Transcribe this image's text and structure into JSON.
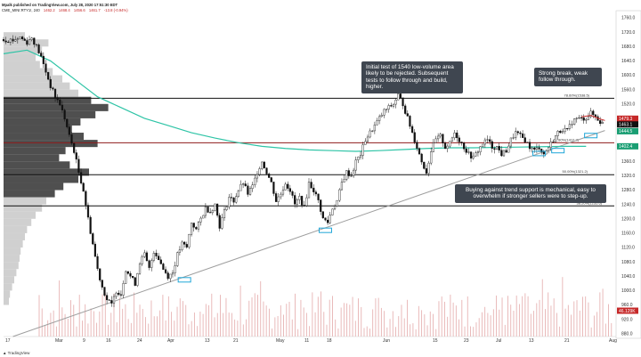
{
  "header": {
    "title": "Mpalk published on TradingView.com, July 28, 2020 17:51:30 EDT",
    "symbol": "CME_MINI:RTY1!, 240",
    "ohlc": [
      "1462.2",
      "1468.4",
      "1456.6",
      "1461.7"
    ],
    "change": "-13.8 (-0.94%)"
  },
  "footer": {
    "logo_text": "TradingView"
  },
  "annotations": {
    "callout_1540": "Initial test of 1540 low-volume area likely to be rejected. Subsequent tests to follow through and build, higher.",
    "callout_break": "Strong break, weak follow through.",
    "callout_support": "Buying against trend support is mechanical, easy to overwhelm if stronger sellers were to step-up."
  },
  "colors": {
    "candle": "#111111",
    "hline": "#111111",
    "red_hline": "#8e1b1b",
    "trendline": "#9e9e9e",
    "ema": "#2ec4a6",
    "profile_dark": "#303030",
    "profile_light": "#c8c8c8",
    "volume": "#e7b3b3",
    "highlight": "#1fa6d8",
    "callout_bg": "#3f4650",
    "price_green": "#1a9e73",
    "price_red": "#c62828"
  },
  "chart_data": {
    "type": "candlestick",
    "title": "",
    "symbol": "CME_MINI:RTY1!",
    "timeframe": "240",
    "x_ticks": [
      "17",
      "Mar",
      "9",
      "16",
      "24",
      "Apr",
      "13",
      "21",
      "May",
      "11",
      "18",
      "Jun",
      "15",
      "23",
      "Jul",
      "13",
      "21",
      "Aug"
    ],
    "y_ticks": [
      "1760.0",
      "1720.0",
      "1680.0",
      "1640.0",
      "1600.0",
      "1560.0",
      "1520.0",
      "1480.0",
      "1440.0",
      "1400.0",
      "1360.0",
      "1320.0",
      "1280.0",
      "1240.0",
      "1200.0",
      "1160.0",
      "1120.0",
      "1080.0",
      "1040.0",
      "1000.0",
      "960.0",
      "920.0",
      "880.0"
    ],
    "ylim": [
      872,
      1775
    ],
    "levels": [
      {
        "price": 1536,
        "label": "78.60%(1538.5)",
        "color": "hline"
      },
      {
        "price": 1412,
        "label": "61.80%(1412.2)",
        "color": "red_hline"
      },
      {
        "price": 1323,
        "label": "50.00%(1321.2)",
        "color": "hline"
      },
      {
        "price": 1236,
        "label": "38.20%(1235.6)",
        "color": "hline"
      }
    ],
    "price_labels": [
      {
        "value": "1479.3",
        "color": "price_red"
      },
      {
        "value": "1463.1",
        "color": "candle"
      },
      {
        "value": "1444.5",
        "color": "price_green"
      },
      {
        "value": "1402.4",
        "color": "price_green"
      },
      {
        "value": "46.129K",
        "color": "price_red"
      }
    ],
    "close_path": [
      [
        0,
        1700
      ],
      [
        4,
        1698
      ],
      [
        7,
        1706
      ],
      [
        10,
        1692
      ],
      [
        12,
        1705
      ],
      [
        14,
        1680
      ],
      [
        16,
        1650
      ],
      [
        18,
        1610
      ],
      [
        20,
        1570
      ],
      [
        22,
        1540
      ],
      [
        24,
        1520
      ],
      [
        26,
        1480
      ],
      [
        28,
        1430
      ],
      [
        30,
        1390
      ],
      [
        32,
        1330
      ],
      [
        34,
        1280
      ],
      [
        36,
        1200
      ],
      [
        38,
        1130
      ],
      [
        40,
        1060
      ],
      [
        42,
        1010
      ],
      [
        44,
        975
      ],
      [
        46,
        960
      ],
      [
        48,
        1000
      ],
      [
        50,
        990
      ],
      [
        52,
        1060
      ],
      [
        54,
        1040
      ],
      [
        56,
        1020
      ],
      [
        58,
        1080
      ],
      [
        60,
        1100
      ],
      [
        62,
        1060
      ],
      [
        64,
        1110
      ],
      [
        66,
        1090
      ],
      [
        68,
        1060
      ],
      [
        70,
        1040
      ],
      [
        72,
        1050
      ],
      [
        74,
        1100
      ],
      [
        76,
        1130
      ],
      [
        78,
        1120
      ],
      [
        80,
        1190
      ],
      [
        82,
        1170
      ],
      [
        84,
        1200
      ],
      [
        86,
        1230
      ],
      [
        88,
        1220
      ],
      [
        90,
        1240
      ],
      [
        92,
        1180
      ],
      [
        94,
        1220
      ],
      [
        96,
        1260
      ],
      [
        98,
        1250
      ],
      [
        100,
        1280
      ],
      [
        102,
        1300
      ],
      [
        104,
        1270
      ],
      [
        106,
        1290
      ],
      [
        108,
        1330
      ],
      [
        110,
        1360
      ],
      [
        112,
        1330
      ],
      [
        114,
        1300
      ],
      [
        116,
        1250
      ],
      [
        118,
        1270
      ],
      [
        120,
        1300
      ],
      [
        122,
        1280
      ],
      [
        124,
        1240
      ],
      [
        126,
        1260
      ],
      [
        128,
        1230
      ],
      [
        130,
        1300
      ],
      [
        132,
        1280
      ],
      [
        134,
        1250
      ],
      [
        136,
        1200
      ],
      [
        138,
        1190
      ],
      [
        140,
        1230
      ],
      [
        142,
        1250
      ],
      [
        144,
        1300
      ],
      [
        146,
        1330
      ],
      [
        148,
        1320
      ],
      [
        150,
        1360
      ],
      [
        152,
        1380
      ],
      [
        154,
        1420
      ],
      [
        156,
        1440
      ],
      [
        158,
        1460
      ],
      [
        160,
        1480
      ],
      [
        162,
        1500
      ],
      [
        164,
        1510
      ],
      [
        166,
        1520
      ],
      [
        168,
        1545
      ],
      [
        170,
        1520
      ],
      [
        172,
        1480
      ],
      [
        174,
        1440
      ],
      [
        176,
        1400
      ],
      [
        178,
        1360
      ],
      [
        180,
        1330
      ],
      [
        182,
        1390
      ],
      [
        184,
        1420
      ],
      [
        186,
        1430
      ],
      [
        188,
        1400
      ],
      [
        190,
        1410
      ],
      [
        192,
        1440
      ],
      [
        194,
        1420
      ],
      [
        196,
        1400
      ],
      [
        198,
        1380
      ],
      [
        200,
        1370
      ],
      [
        202,
        1390
      ],
      [
        204,
        1410
      ],
      [
        206,
        1420
      ],
      [
        208,
        1400
      ],
      [
        210,
        1400
      ],
      [
        212,
        1380
      ],
      [
        214,
        1390
      ],
      [
        216,
        1420
      ],
      [
        218,
        1440
      ],
      [
        220,
        1430
      ],
      [
        222,
        1420
      ],
      [
        224,
        1400
      ],
      [
        226,
        1390
      ],
      [
        228,
        1400
      ],
      [
        230,
        1380
      ],
      [
        232,
        1400
      ],
      [
        234,
        1420
      ],
      [
        236,
        1440
      ],
      [
        238,
        1450
      ],
      [
        240,
        1445
      ],
      [
        242,
        1470
      ],
      [
        244,
        1480
      ],
      [
        246,
        1478
      ],
      [
        248,
        1482
      ],
      [
        250,
        1494
      ],
      [
        252,
        1485
      ],
      [
        254,
        1470
      ],
      [
        256,
        1463
      ]
    ],
    "ema_path": [
      [
        0,
        1660
      ],
      [
        10,
        1670
      ],
      [
        20,
        1640
      ],
      [
        30,
        1590
      ],
      [
        40,
        1540
      ],
      [
        50,
        1510
      ],
      [
        60,
        1480
      ],
      [
        70,
        1460
      ],
      [
        80,
        1440
      ],
      [
        90,
        1425
      ],
      [
        100,
        1412
      ],
      [
        110,
        1402
      ],
      [
        120,
        1396
      ],
      [
        130,
        1392
      ],
      [
        140,
        1390
      ],
      [
        150,
        1388
      ],
      [
        160,
        1390
      ],
      [
        170,
        1393
      ],
      [
        180,
        1396
      ],
      [
        190,
        1398
      ],
      [
        200,
        1398
      ],
      [
        210,
        1399
      ],
      [
        220,
        1400
      ],
      [
        230,
        1401
      ],
      [
        240,
        1402
      ],
      [
        248,
        1402
      ]
    ],
    "trendline": [
      [
        4,
        872
      ],
      [
        256,
        1446
      ]
    ],
    "highlights": [
      [
        77,
        1030
      ],
      [
        137,
        1168
      ],
      [
        228,
        1382
      ],
      [
        236,
        1390
      ],
      [
        250,
        1432
      ]
    ],
    "volume_profile": [
      [
        1710,
        0.2,
        "light"
      ],
      [
        1690,
        0.42,
        "light"
      ],
      [
        1670,
        0.36,
        "light"
      ],
      [
        1650,
        0.3,
        "light"
      ],
      [
        1630,
        0.34,
        "light"
      ],
      [
        1610,
        0.46,
        "light"
      ],
      [
        1590,
        0.55,
        "light"
      ],
      [
        1570,
        0.62,
        "light"
      ],
      [
        1550,
        0.7,
        "light"
      ],
      [
        1530,
        0.82,
        "dark"
      ],
      [
        1510,
        0.98,
        "dark"
      ],
      [
        1490,
        0.86,
        "dark"
      ],
      [
        1470,
        0.72,
        "dark"
      ],
      [
        1450,
        0.64,
        "dark"
      ],
      [
        1430,
        0.75,
        "dark"
      ],
      [
        1410,
        0.88,
        "dark"
      ],
      [
        1390,
        0.58,
        "dark"
      ],
      [
        1370,
        0.52,
        "dark"
      ],
      [
        1350,
        0.62,
        "dark"
      ],
      [
        1330,
        0.8,
        "dark"
      ],
      [
        1310,
        0.7,
        "dark"
      ],
      [
        1290,
        0.56,
        "dark"
      ],
      [
        1270,
        0.48,
        "dark"
      ],
      [
        1250,
        0.4,
        "light"
      ],
      [
        1230,
        0.36,
        "light"
      ],
      [
        1210,
        0.3,
        "light"
      ],
      [
        1190,
        0.26,
        "light"
      ],
      [
        1170,
        0.22,
        "light"
      ],
      [
        1150,
        0.2,
        "light"
      ],
      [
        1130,
        0.18,
        "light"
      ],
      [
        1110,
        0.16,
        "light"
      ],
      [
        1090,
        0.15,
        "light"
      ],
      [
        1070,
        0.14,
        "light"
      ],
      [
        1050,
        0.12,
        "light"
      ],
      [
        1030,
        0.1,
        "light"
      ],
      [
        1010,
        0.08,
        "light"
      ],
      [
        990,
        0.06,
        "light"
      ],
      [
        970,
        0.05,
        "light"
      ]
    ]
  }
}
